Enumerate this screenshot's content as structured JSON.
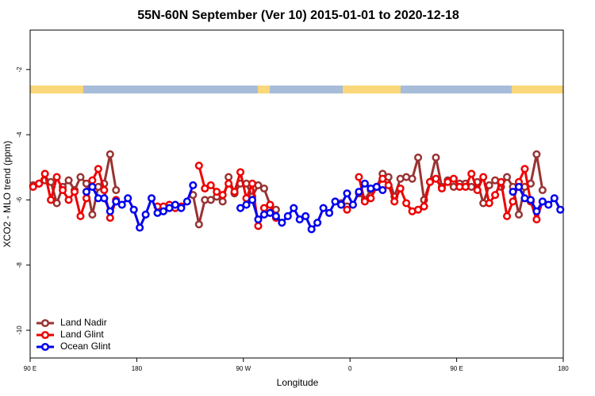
{
  "chart_data": {
    "type": "line",
    "title": "55N-60N September (Ver 10)   2015-01-01 to 2020-12-18",
    "x_label": "Longitude",
    "y_label": "XCO2 - MLO trend (ppm)",
    "xlim": [
      90,
      540
    ],
    "ylim": [
      -10.85,
      -0.79
    ],
    "xticks": [
      {
        "value": 90,
        "label": "90 E"
      },
      180,
      {
        "value": 270,
        "label": "90 W"
      },
      {
        "value": 360,
        "label": "0"
      },
      {
        "value": 450,
        "label": "90 E"
      },
      {
        "value": 540,
        "label": "180"
      }
    ],
    "yticks": [
      -2,
      -4,
      -6,
      -8,
      -10
    ],
    "grid": false,
    "legend": "lower left",
    "x": [
      92.5,
      97.5,
      102.5,
      107.5,
      112.5,
      117.5,
      122.5,
      127.5,
      132.5,
      137.5,
      142.5,
      147.5,
      152.5,
      157.5,
      162.5,
      167.5,
      172.5,
      177.5,
      182.5,
      187.5,
      192.5,
      197.5,
      202.5,
      207.5,
      212.5,
      217.5,
      222.5,
      227.5,
      232.5,
      237.5,
      242.5,
      247.5,
      252.5,
      257.5,
      262.5,
      267.5,
      272.5,
      277.5,
      282.5,
      287.5,
      292.5,
      297.5,
      302.5,
      307.5,
      312.5,
      317.5,
      322.5,
      327.5,
      332.5,
      337.5,
      342.5,
      347.5,
      352.5,
      357.5,
      362.5,
      367.5,
      372.5,
      377.5,
      382.5,
      387.5,
      392.5,
      397.5,
      402.5,
      407.5,
      412.5,
      417.5,
      422.5,
      427.5,
      432.5,
      437.5,
      442.5,
      447.5,
      452.5,
      457.5,
      462.5,
      467.5,
      472.5,
      477.5,
      482.5,
      487.5,
      492.5,
      497.5,
      502.5,
      507.5,
      512.5,
      517.5,
      522.5,
      527.5,
      532.5,
      537.5
    ],
    "series": [
      {
        "name": "Land Nadir",
        "color": "#993333",
        "values": [
          -5.55,
          -5.5,
          -5.4,
          -5.45,
          -6.1,
          -5.6,
          -5.4,
          -5.7,
          -5.3,
          -5.5,
          -6.45,
          -5.6,
          -5.5,
          -4.6,
          -5.7,
          null,
          null,
          null,
          null,
          null,
          null,
          null,
          null,
          null,
          null,
          null,
          null,
          -5.85,
          -6.75,
          -6.0,
          -6.0,
          -5.9,
          -6.05,
          -5.3,
          -5.8,
          -5.5,
          -5.5,
          -5.9,
          -5.55,
          -5.65,
          -6.15,
          -6.3,
          null,
          null,
          null,
          null,
          null,
          null,
          null,
          null,
          null,
          null,
          -6.1,
          -6.2,
          null,
          -5.8,
          -6.0,
          -5.7,
          -5.6,
          -5.2,
          -5.3,
          -5.9,
          -5.35,
          -5.3,
          -5.35,
          -4.7,
          -6.0,
          -5.45,
          -4.7,
          -5.6,
          -5.4,
          -5.6,
          -5.5,
          -5.5,
          -5.6,
          -5.45,
          -6.1,
          -5.55,
          -5.4,
          -5.6,
          -5.3,
          -5.6,
          -6.45,
          -5.6,
          -5.5,
          -4.6,
          -5.7,
          null,
          null,
          null
        ]
      },
      {
        "name": "Land Glint",
        "color": "#ee0000",
        "values": [
          -5.6,
          -5.5,
          -5.2,
          -6.0,
          -5.3,
          -5.7,
          -6.0,
          -5.75,
          -6.5,
          -5.95,
          -5.4,
          -5.05,
          -5.7,
          -6.55,
          -6.0,
          null,
          null,
          null,
          null,
          null,
          null,
          -6.2,
          -6.2,
          -6.15,
          -6.25,
          -6.2,
          null,
          null,
          -4.95,
          -5.65,
          -5.55,
          -5.75,
          -5.85,
          -5.5,
          -5.75,
          -5.15,
          -5.95,
          -5.5,
          -6.8,
          -6.25,
          -6.15,
          -6.55,
          null,
          null,
          null,
          null,
          null,
          null,
          null,
          null,
          null,
          null,
          null,
          -6.3,
          null,
          -5.3,
          -6.05,
          -5.95,
          -5.6,
          -5.35,
          -5.55,
          -6.05,
          -5.65,
          -6.1,
          -6.35,
          -6.3,
          -6.2,
          -5.45,
          -5.35,
          -5.65,
          -5.45,
          -5.35,
          -5.6,
          -5.6,
          -5.2,
          -5.7,
          -5.3,
          -6.1,
          -5.85,
          -5.45,
          -6.5,
          -6.05,
          -5.45,
          -5.05,
          -6.05,
          -6.6,
          -6.05,
          null,
          null,
          null
        ]
      },
      {
        "name": "Ocean Glint",
        "color": "#0000ee",
        "values": [
          null,
          null,
          null,
          null,
          null,
          null,
          null,
          null,
          null,
          -5.75,
          -5.6,
          -5.95,
          -5.95,
          -6.35,
          -6.05,
          -6.15,
          -5.95,
          -6.3,
          -6.85,
          -6.45,
          -5.95,
          -6.4,
          -6.35,
          -6.25,
          -6.15,
          -6.25,
          -6.05,
          -5.55,
          null,
          null,
          null,
          null,
          null,
          null,
          null,
          -6.25,
          -6.15,
          -6.0,
          -6.6,
          -6.45,
          -6.4,
          -6.5,
          -6.7,
          -6.5,
          -6.25,
          -6.6,
          -6.5,
          -6.9,
          -6.7,
          -6.25,
          -6.4,
          -6.05,
          -6.15,
          -5.8,
          -6.15,
          -5.75,
          -5.5,
          -5.65,
          -5.6,
          -5.7,
          null,
          null,
          null,
          null,
          null,
          null,
          null,
          null,
          null,
          null,
          null,
          null,
          null,
          null,
          null,
          null,
          null,
          null,
          null,
          null,
          null,
          -5.75,
          -5.6,
          -5.95,
          -6.0,
          -6.35,
          -6.05,
          -6.15,
          -5.95,
          -6.3
        ]
      }
    ]
  }
}
